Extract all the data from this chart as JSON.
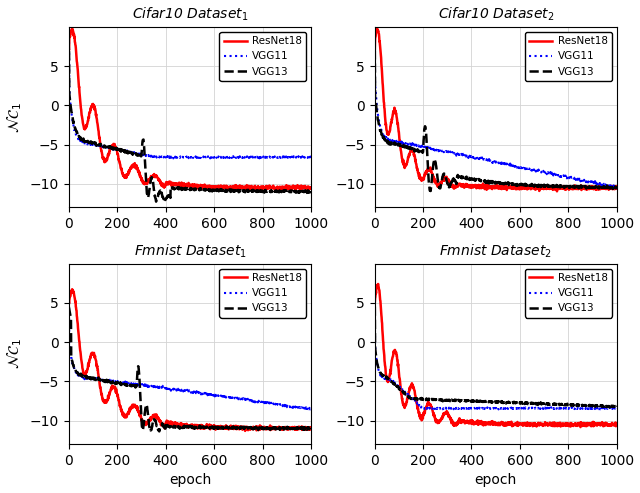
{
  "titles": [
    "Cifar10 $Dataset_1$",
    "Cifar10 $Dataset_2$",
    "Fmnist $Dataset_1$",
    "Fmnist $Dataset_2$"
  ],
  "ylabel": "$\\mathcal{NC}_1$",
  "xlabel": "epoch",
  "xlim": [
    0,
    1000
  ],
  "ylim": [
    -13,
    10
  ],
  "yticks": [
    -10,
    -5,
    0,
    5
  ],
  "xticks": [
    0,
    200,
    400,
    600,
    800,
    1000
  ],
  "legend_labels": [
    "ResNet18",
    "VGG11",
    "VGG13"
  ],
  "line_colors": [
    "red",
    "blue",
    "black"
  ],
  "line_styles": [
    "-",
    ":",
    "--"
  ],
  "figsize": [
    6.4,
    4.93
  ],
  "dpi": 100
}
